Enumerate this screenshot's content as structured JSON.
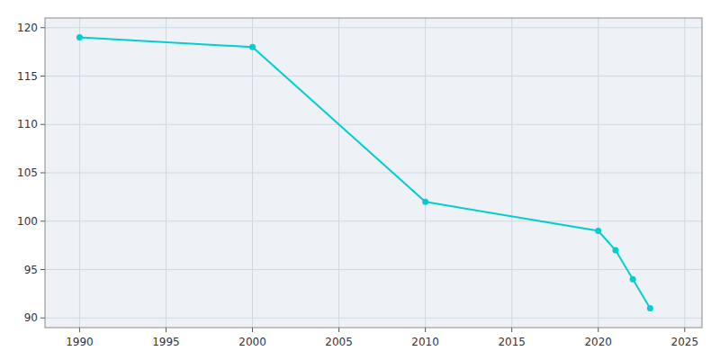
{
  "chart_data": {
    "type": "line",
    "x": [
      1990,
      2000,
      2010,
      2020,
      2021,
      2022,
      2023
    ],
    "values": [
      119,
      118,
      102,
      99,
      97,
      94,
      91
    ],
    "color": "#00CED1",
    "marker": "circle",
    "xlim": [
      1988,
      2026
    ],
    "ylim": [
      89,
      121
    ],
    "xticks": [
      1990,
      1995,
      2000,
      2005,
      2010,
      2015,
      2020,
      2025
    ],
    "yticks": [
      90,
      95,
      100,
      105,
      110,
      115,
      120
    ],
    "grid": true
  }
}
